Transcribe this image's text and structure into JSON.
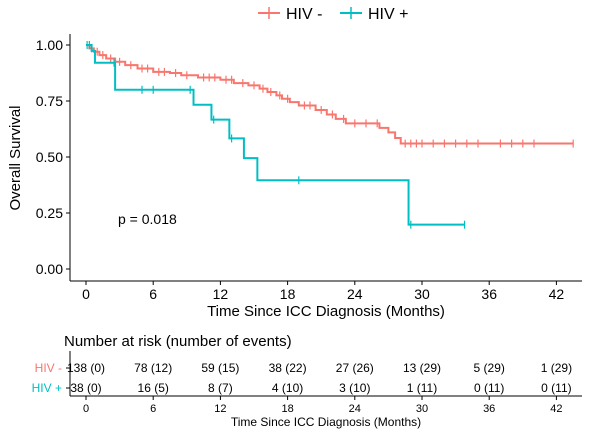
{
  "chart_data": {
    "type": "line",
    "subtype": "kaplan-meier",
    "xlabel": "Time Since ICC Diagnosis (Months)",
    "ylabel": "Overall Survival",
    "xlim": [
      0,
      44
    ],
    "ylim": [
      0,
      1
    ],
    "x_ticks": [
      "0",
      "6",
      "12",
      "18",
      "24",
      "30",
      "36",
      "42"
    ],
    "y_ticks": [
      "0.00",
      "0.25",
      "0.50",
      "0.75",
      "1.00"
    ],
    "grid": false,
    "legend_position": "top",
    "annotation": "p = 0.018",
    "series": [
      {
        "name": "HIV -",
        "color": "#F8766D",
        "steps": [
          [
            0,
            1.0
          ],
          [
            0.3,
            0.985
          ],
          [
            0.7,
            0.97
          ],
          [
            1.2,
            0.955
          ],
          [
            1.8,
            0.94
          ],
          [
            2.6,
            0.925
          ],
          [
            3.5,
            0.91
          ],
          [
            4.6,
            0.895
          ],
          [
            6.0,
            0.88
          ],
          [
            7.5,
            0.875
          ],
          [
            8.5,
            0.865
          ],
          [
            10.0,
            0.855
          ],
          [
            12.0,
            0.845
          ],
          [
            13.2,
            0.83
          ],
          [
            14.5,
            0.82
          ],
          [
            15.5,
            0.805
          ],
          [
            16.2,
            0.79
          ],
          [
            17.0,
            0.775
          ],
          [
            17.5,
            0.76
          ],
          [
            18.2,
            0.745
          ],
          [
            19.0,
            0.73
          ],
          [
            20.5,
            0.71
          ],
          [
            21.5,
            0.69
          ],
          [
            22.3,
            0.67
          ],
          [
            23.2,
            0.65
          ],
          [
            26.2,
            0.63
          ],
          [
            27.0,
            0.61
          ],
          [
            27.6,
            0.585
          ],
          [
            28.1,
            0.56
          ],
          [
            43.5,
            0.56
          ]
        ],
        "censor": [
          0.5,
          1,
          1.5,
          2.2,
          3,
          4,
          5,
          5.5,
          6.5,
          7,
          8,
          9,
          10.5,
          11,
          11.5,
          12.5,
          13,
          14,
          15,
          15.8,
          16.5,
          17.3,
          18,
          19.5,
          20,
          21,
          22,
          23,
          24,
          25,
          26,
          28.5,
          29,
          29.5,
          30,
          31,
          32,
          33,
          34,
          35,
          37,
          38,
          39,
          40,
          43.5
        ]
      },
      {
        "name": "HIV +",
        "color": "#00BFC4",
        "steps": [
          [
            0,
            1.0
          ],
          [
            0.5,
            0.974
          ],
          [
            0.8,
            0.921
          ],
          [
            2.6,
            0.8
          ],
          [
            9.3,
            0.8
          ],
          [
            9.6,
            0.733
          ],
          [
            11.2,
            0.667
          ],
          [
            12.8,
            0.583
          ],
          [
            14.1,
            0.495
          ],
          [
            15.3,
            0.396
          ],
          [
            28.7,
            0.396
          ],
          [
            28.8,
            0.198
          ],
          [
            33.8,
            0.198
          ]
        ],
        "censor": [
          0.1,
          0.3,
          2.5,
          5,
          6,
          9.3,
          11.4,
          13,
          19,
          29,
          33.8
        ]
      }
    ]
  },
  "risk_table": {
    "title": "Number at risk (number of events)",
    "xlabel": "Time Since ICC Diagnosis (Months)",
    "x_ticks": [
      "0",
      "6",
      "12",
      "18",
      "24",
      "30",
      "36",
      "42"
    ],
    "rows": [
      {
        "label": "HIV -",
        "color": "#F8766D",
        "values": [
          "138 (0)",
          "78 (12)",
          "59 (15)",
          "38 (22)",
          "27 (26)",
          "13 (29)",
          "5 (29)",
          "1 (29)"
        ]
      },
      {
        "label": "HIV +",
        "color": "#00BFC4",
        "values": [
          "38 (0)",
          "16 (5)",
          "8 (7)",
          "4 (10)",
          "3 (10)",
          "1 (11)",
          "0 (11)",
          "0 (11)"
        ]
      }
    ]
  }
}
